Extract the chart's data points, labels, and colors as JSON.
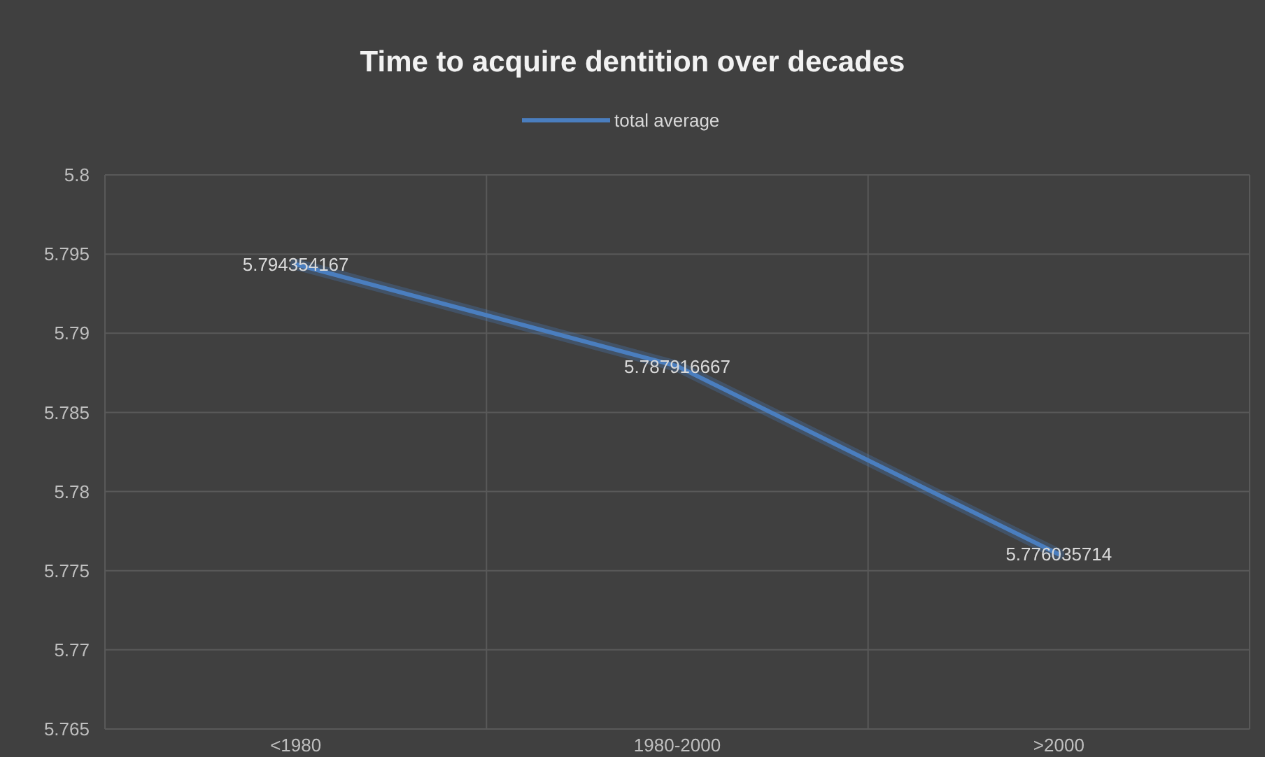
{
  "chart_data": {
    "type": "line",
    "title": "Time to acquire dentition over decades",
    "categories": [
      "<1980",
      "1980-2000",
      ">2000"
    ],
    "series": [
      {
        "name": "total average",
        "color": "#4a7ebf",
        "values": [
          5.794354167,
          5.787916667,
          5.776035714
        ]
      }
    ],
    "ylim": [
      5.765,
      5.8
    ],
    "yticks": [
      5.765,
      5.77,
      5.775,
      5.78,
      5.785,
      5.79,
      5.795,
      5.8
    ],
    "grid": true,
    "legend": "top",
    "data_labels": true,
    "marker": "none",
    "line_style": "solid"
  }
}
